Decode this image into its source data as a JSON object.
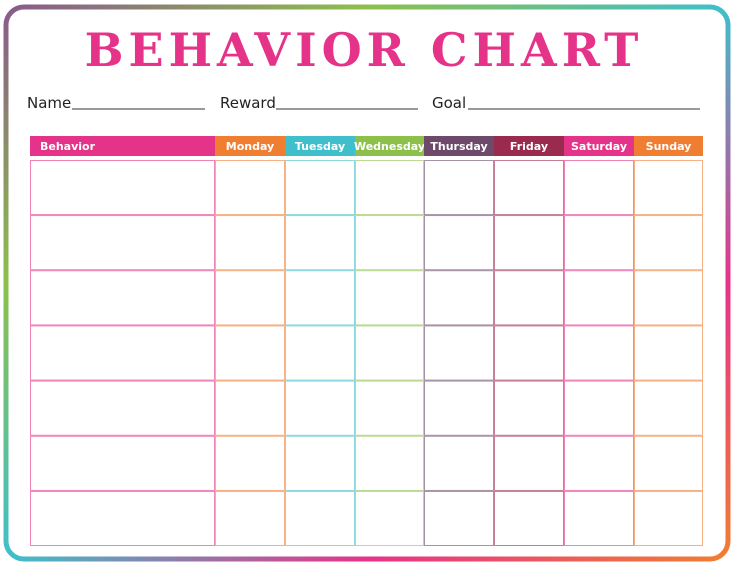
{
  "header": {
    "title": "BEHAVIOR CHART"
  },
  "fields": [
    "Name",
    "Reward",
    "Goal"
  ],
  "table": {
    "headers": [
      "Behavior",
      "Monday",
      "Tuesday",
      "Wednesday",
      "Thursday",
      "Friday",
      "Saturday",
      "Sunday"
    ]
  }
}
